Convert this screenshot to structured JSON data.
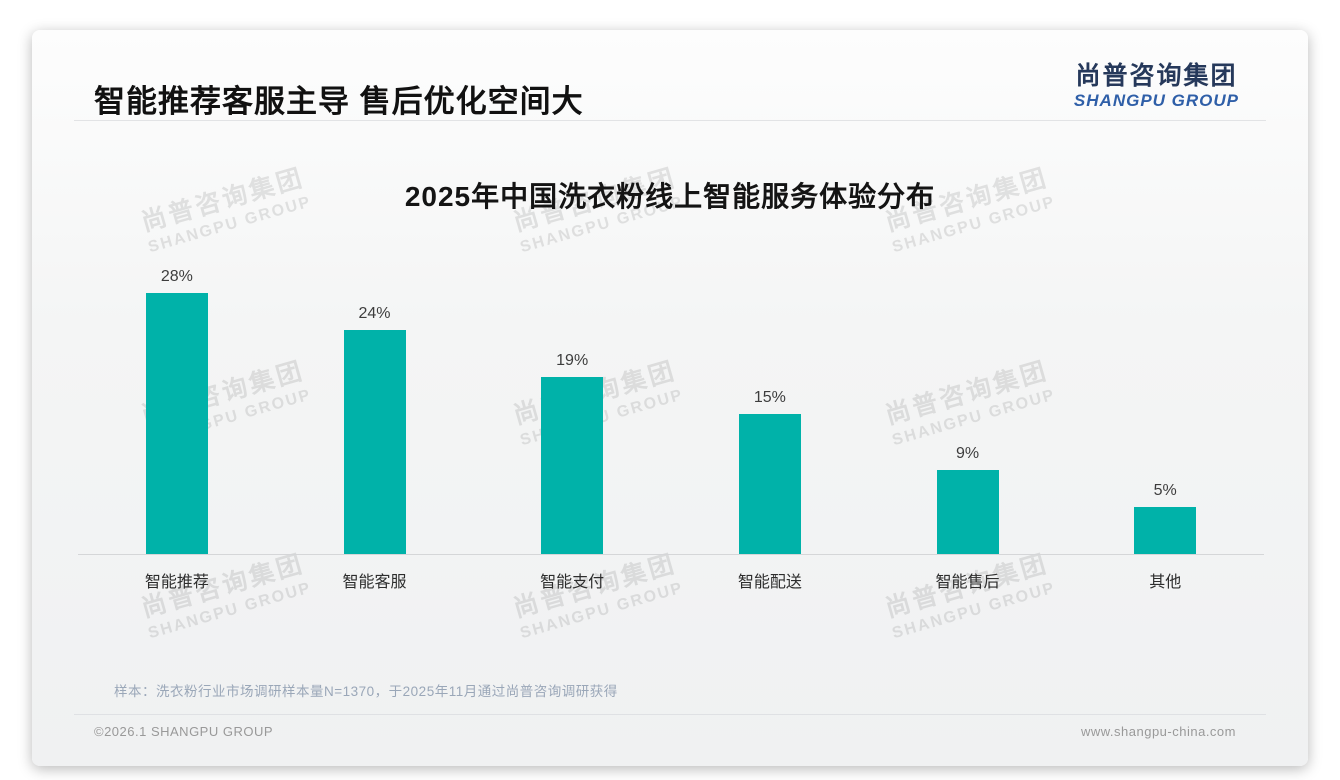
{
  "header": {
    "title": "智能推荐客服主导 售后优化空间大",
    "logo_cn": "尚普咨询集团",
    "logo_en": "SHANGPU GROUP"
  },
  "watermark": {
    "line_cn": "尚普咨询集团",
    "line_en": "SHANGPU GROUP"
  },
  "chart_data": {
    "type": "bar",
    "title": "2025年中国洗衣粉线上智能服务体验分布",
    "categories": [
      "智能推荐",
      "智能客服",
      "智能支付",
      "智能配送",
      "智能售后",
      "其他"
    ],
    "values": [
      28,
      24,
      19,
      15,
      9,
      5
    ],
    "value_labels": [
      "28%",
      "24%",
      "19%",
      "15%",
      "9%",
      "5%"
    ],
    "unit": "%",
    "xlabel": "",
    "ylabel": "",
    "ylim": [
      0,
      30
    ],
    "grid": false,
    "legend": "none",
    "bar_color": "#00B2A9",
    "axis_line_color": "#d5d6d8"
  },
  "footnote": {
    "text": "样本：洗衣粉行业市场调研样本量N=1370，于2025年11月通过尚普咨询调研获得"
  },
  "footer": {
    "left": "©2026.1 SHANGPU GROUP",
    "right": "www.shangpu-china.com"
  },
  "colors": {
    "bar": "#00B2A9",
    "logo_cn": "#26395B",
    "logo_en": "#2F5FA8",
    "note": "#9AA7B8",
    "title": "#111111"
  }
}
